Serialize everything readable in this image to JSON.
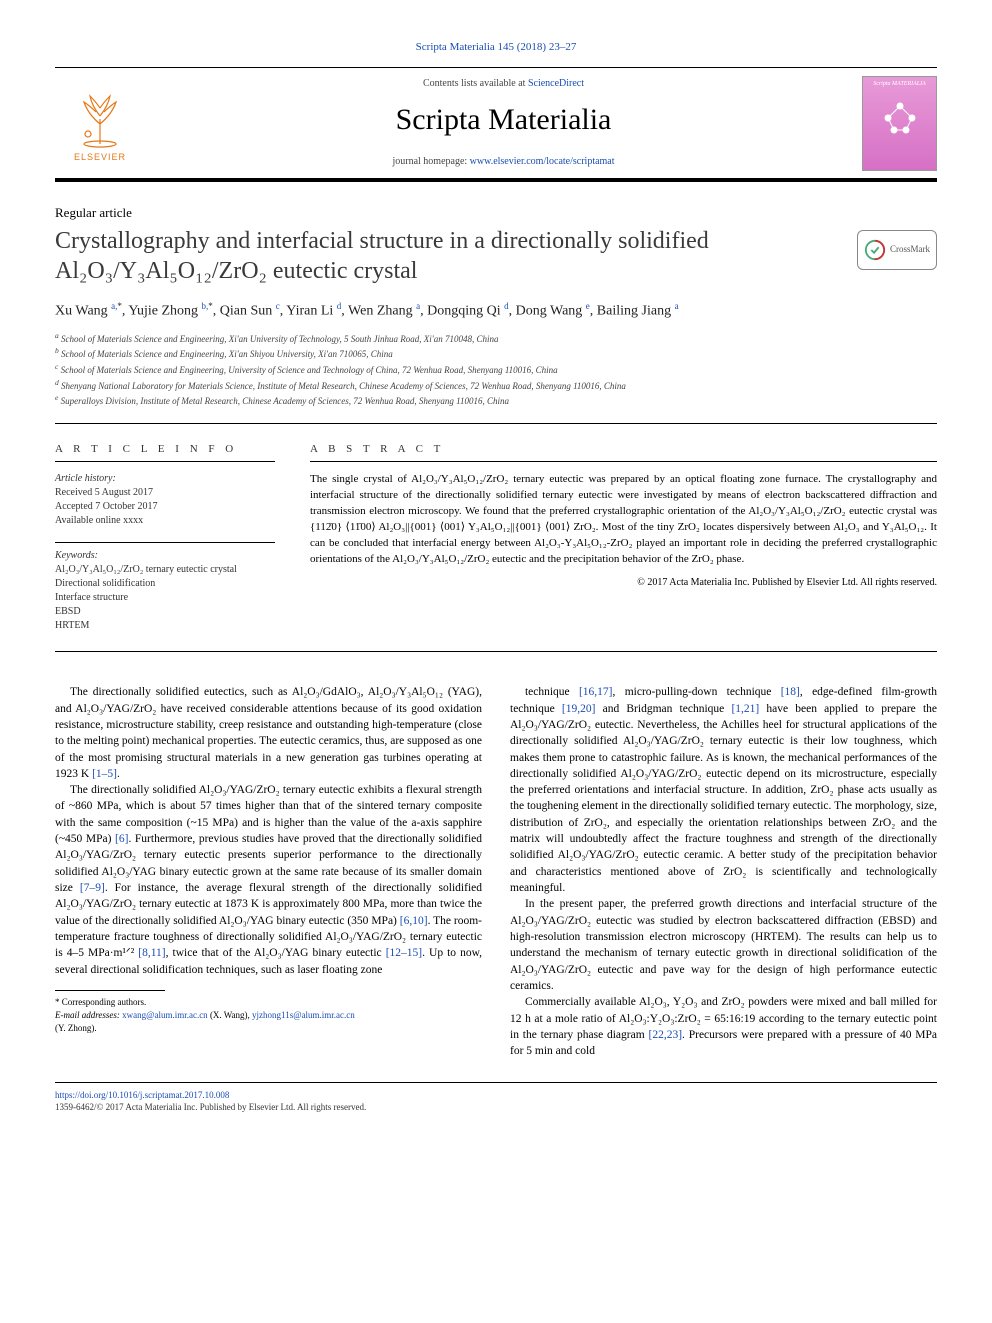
{
  "header": {
    "journal_ref_pre": "Scripta Materialia 145 (2018) 23–27",
    "contents_line_pre": "Contents lists available at ",
    "contents_link": "ScienceDirect",
    "journal_name": "Scripta Materialia",
    "homepage_label": "journal homepage: ",
    "homepage_url": "www.elsevier.com/locate/scriptamat",
    "elsevier_brand": "ELSEVIER",
    "cover_title": "Scripta MATERIALIA",
    "crossmark_label": "CrossMark",
    "colors": {
      "link": "#1a4db3",
      "elsevier_orange": "#e67817",
      "cover_pink_top": "#e89ad8",
      "cover_pink_bottom": "#d670c5",
      "text": "#000000",
      "muted": "#444444"
    }
  },
  "article": {
    "type": "Regular article",
    "title": "Crystallography and interfacial structure in a directionally solidified Al₂O₃/Y₃Al₅O₁₂/ZrO₂ eutectic crystal",
    "authors_html": "Xu Wang <sup><a href='#'>a,</a>*</sup>, Yujie Zhong <sup><a href='#'>b,</a>*</sup>, Qian Sun <sup><a href='#'>c</a></sup>, Yiran Li <sup><a href='#'>d</a></sup>, Wen Zhang <sup><a href='#'>a</a></sup>, Dongqing Qi <sup><a href='#'>d</a></sup>, Dong Wang <sup><a href='#'>e</a></sup>, Bailing Jiang <sup><a href='#'>a</a></sup>",
    "affiliations": [
      "a School of Materials Science and Engineering, Xi'an University of Technology, 5 South Jinhua Road, Xi'an 710048, China",
      "b School of Materials Science and Engineering, Xi'an Shiyou University, Xi'an 710065, China",
      "c School of Materials Science and Engineering, University of Science and Technology of China, 72 Wenhua Road, Shenyang 110016, China",
      "d Shenyang National Laboratory for Materials Science, Institute of Metal Research, Chinese Academy of Sciences, 72 Wenhua Road, Shenyang 110016, China",
      "e Superalloys Division, Institute of Metal Research, Chinese Academy of Sciences, 72 Wenhua Road, Shenyang 110016, China"
    ]
  },
  "info": {
    "head": "A R T I C L E   I N F O",
    "history_label": "Article history:",
    "history": [
      "Received 5 August 2017",
      "Accepted 7 October 2017",
      "Available online xxxx"
    ],
    "keywords_label": "Keywords:",
    "keywords": [
      "Al₂O₃/Y₃Al₅O₁₂/ZrO₂ ternary eutectic crystal",
      "Directional solidification",
      "Interface structure",
      "EBSD",
      "HRTEM"
    ]
  },
  "abstract": {
    "head": "A B S T R A C T",
    "text": "The single crystal of Al₂O₃/Y₃Al₅O₁₂/ZrO₂ ternary eutectic was prepared by an optical floating zone furnace. The crystallography and interfacial structure of the directionally solidified ternary eutectic were investigated by means of electron backscattered diffraction and transmission electron microscopy. We found that the preferred crystallographic orientation of the Al₂O₃/Y₃Al₅O₁₂/ZrO₂ eutectic crystal was {112̄0} ⟨11̄00⟩ Al₂O₃||{001} ⟨001⟩ Y₃Al₅O₁₂||{001} ⟨001⟩ ZrO₂. Most of the tiny ZrO₂ locates dispersively between Al₂O₃ and Y₃Al₅O₁₂. It can be concluded that interfacial energy between Al₂O₃-Y₃Al₅O₁₂-ZrO₂ played an important role in deciding the preferred crystallographic orientations of the Al₂O₃/Y₃Al₅O₁₂/ZrO₂ eutectic and the precipitation behavior of the ZrO₂ phase.",
    "copyright": "© 2017 Acta Materialia Inc. Published by Elsevier Ltd. All rights reserved."
  },
  "body": {
    "p1": "The directionally solidified eutectics, such as Al₂O₃/GdAlO₃, Al₂O₃/Y₃Al₅O₁₂ (YAG), and Al₂O₃/YAG/ZrO₂ have received considerable attentions because of its good oxidation resistance, microstructure stability, creep resistance and outstanding high-temperature (close to the melting point) mechanical properties. The eutectic ceramics, thus, are supposed as one of the most promising structural materials in a new generation gas turbines operating at 1923 K ",
    "p1_ref": "[1–5]",
    "p1_end": ".",
    "p2_a": "The directionally solidified Al₂O₃/YAG/ZrO₂ ternary eutectic exhibits a flexural strength of ~860 MPa, which is about 57 times higher than that of the sintered ternary composite with the same composition (~15 MPa) and is higher than the value of the a-axis sapphire (~450 MPa) ",
    "p2_ref1": "[6]",
    "p2_b": ". Furthermore, previous studies have proved that the directionally solidified Al₂O₃/YAG/ZrO₂ ternary eutectic presents superior performance to the directionally solidified Al₂O₃/YAG binary eutectic grown at the same rate because of its smaller domain size ",
    "p2_ref2": "[7–9]",
    "p2_c": ". For instance, the average flexural strength of the directionally solidified Al₂O₃/YAG/ZrO₂ ternary eutectic at 1873 K is approximately 800 MPa, more than twice the value of the directionally solidified Al₂O₃/YAG binary eutectic (350 MPa) ",
    "p2_ref3": "[6,10]",
    "p2_d": ". The room-temperature fracture toughness of directionally solidified Al₂O₃/YAG/ZrO₂ ternary eutectic is 4–5 MPa·m¹ᐟ² ",
    "p2_ref4": "[8,11]",
    "p2_e": ", twice that of the Al₂O₃/YAG binary eutectic ",
    "p2_ref5": "[12–15]",
    "p2_f": ". Up to now, several directional solidification techniques, such as laser floating zone",
    "p3_a": "technique ",
    "p3_ref1": "[16,17]",
    "p3_b": ", micro-pulling-down technique ",
    "p3_ref2": "[18]",
    "p3_c": ", edge-defined film-growth technique ",
    "p3_ref3": "[19,20]",
    "p3_d": " and Bridgman technique ",
    "p3_ref4": "[1,21]",
    "p3_e": " have been applied to prepare the Al₂O₃/YAG/ZrO₂ eutectic. Nevertheless, the Achilles heel for structural applications of the directionally solidified Al₂O₃/YAG/ZrO₂ ternary eutectic is their low toughness, which makes them prone to catastrophic failure. As is known, the mechanical performances of the directionally solidified Al₂O₃/YAG/ZrO₂ eutectic depend on its microstructure, especially the preferred orientations and interfacial structure. In addition, ZrO₂ phase acts usually as the toughening element in the directionally solidified ternary eutectic. The morphology, size, distribution of ZrO₂, and especially the orientation relationships between ZrO₂ and the matrix will undoubtedly affect the fracture toughness and strength of the directionally solidified Al₂O₃/YAG/ZrO₂ eutectic ceramic. A better study of the precipitation behavior and characteristics mentioned above of ZrO₂ is scientifically and technologically meaningful.",
    "p4": "In the present paper, the preferred growth directions and interfacial structure of the Al₂O₃/YAG/ZrO₂ eutectic was studied by electron backscattered diffraction (EBSD) and high-resolution transmission electron microscopy (HRTEM). The results can help us to understand the mechanism of ternary eutectic growth in directional solidification of the Al₂O₃/YAG/ZrO₂ eutectic and pave way for the design of high performance eutectic ceramics.",
    "p5_a": "Commercially available Al₂O₃, Y₂O₃ and ZrO₂ powders were mixed and ball milled for 12 h at a mole ratio of Al₂O₃:Y₂O₃:ZrO₂ = 65:16:19 according to the ternary eutectic point in the ternary phase diagram ",
    "p5_ref": "[22,23]",
    "p5_b": ". Precursors were prepared with a pressure of 40 MPa for 5 min and cold"
  },
  "footnotes": {
    "corr_label": "* Corresponding authors.",
    "email_label": "E-mail addresses: ",
    "email1": "xwang@alum.imr.ac.cn",
    "email1_name": " (X. Wang), ",
    "email2": "yjzhong11s@alum.imr.ac.cn",
    "email2_name": " (Y. Zhong)."
  },
  "footer": {
    "doi": "https://doi.org/10.1016/j.scriptamat.2017.10.008",
    "issn_line": "1359-6462/© 2017 Acta Materialia Inc. Published by Elsevier Ltd. All rights reserved."
  }
}
